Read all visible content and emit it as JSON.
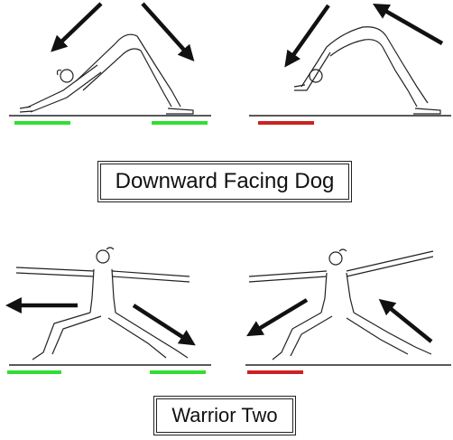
{
  "poses": [
    {
      "title": "Downward Facing Dog"
    },
    {
      "title": "Warrior Two"
    }
  ],
  "colors": {
    "correct": "#33dd33",
    "incorrect": "#cc2222",
    "line": "#222222",
    "arrow": "#111111"
  },
  "icons": [
    "correct-indicator-bar",
    "incorrect-indicator-bar",
    "direction-arrow"
  ]
}
